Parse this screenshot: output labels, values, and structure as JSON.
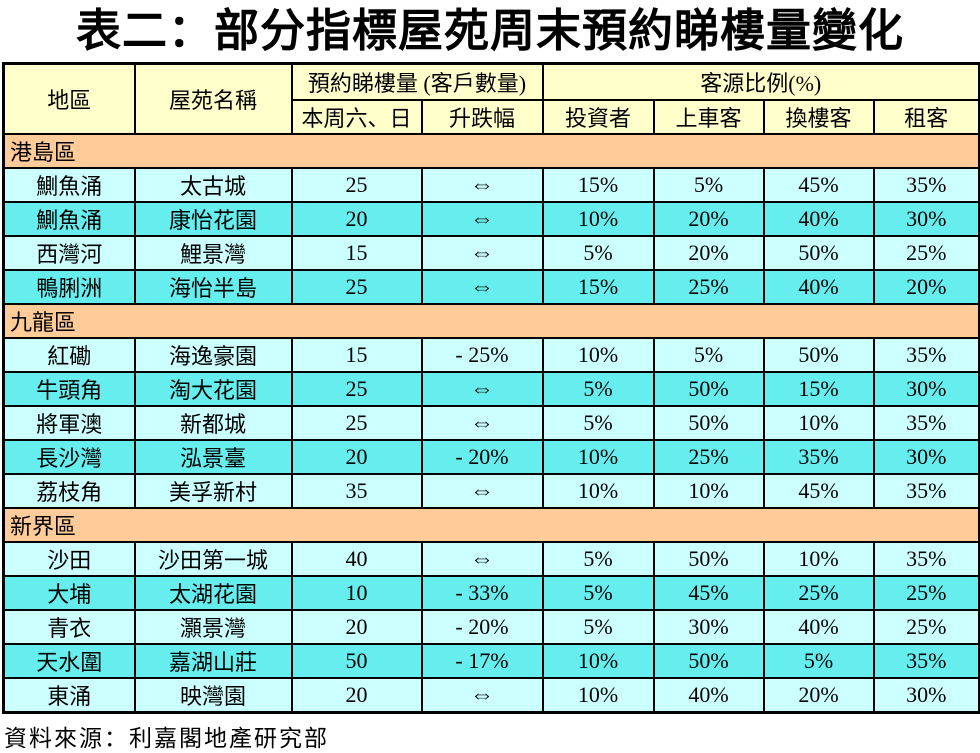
{
  "title": "表二：部分指標屋苑周末預約睇樓量變化",
  "colors": {
    "header_bg": "#FFFFCC",
    "section_bg": "#FFCC99",
    "row_light": "#CCFFFF",
    "row_bright": "#66EEEE",
    "border": "#000000"
  },
  "table": {
    "headers": {
      "district": "地區",
      "estate": "屋苑名稱",
      "bookings_group": "預約睇樓量 (客戶數量)",
      "weekend": "本周六、日",
      "change": "升跌幅",
      "source_group": "客源比例(%)",
      "investor": "投資者",
      "first_time": "上車客",
      "upgrader": "換樓客",
      "tenant": "租客"
    },
    "sections": [
      {
        "name": "港島區",
        "rows": [
          {
            "district": "鰂魚涌",
            "estate": "太古城",
            "weekend": "25",
            "change": "⇔",
            "investor": "15%",
            "first_time": "5%",
            "upgrader": "45%",
            "tenant": "35%"
          },
          {
            "district": "鰂魚涌",
            "estate": "康怡花園",
            "weekend": "20",
            "change": "⇔",
            "investor": "10%",
            "first_time": "20%",
            "upgrader": "40%",
            "tenant": "30%"
          },
          {
            "district": "西灣河",
            "estate": "鯉景灣",
            "weekend": "15",
            "change": "⇔",
            "investor": "5%",
            "first_time": "20%",
            "upgrader": "50%",
            "tenant": "25%"
          },
          {
            "district": "鴨脷洲",
            "estate": "海怡半島",
            "weekend": "25",
            "change": "⇔",
            "investor": "15%",
            "first_time": "25%",
            "upgrader": "40%",
            "tenant": "20%"
          }
        ]
      },
      {
        "name": "九龍區",
        "rows": [
          {
            "district": "紅磡",
            "estate": "海逸豪園",
            "weekend": "15",
            "change": "- 25%",
            "investor": "10%",
            "first_time": "5%",
            "upgrader": "50%",
            "tenant": "35%"
          },
          {
            "district": "牛頭角",
            "estate": "淘大花園",
            "weekend": "25",
            "change": "⇔",
            "investor": "5%",
            "first_time": "50%",
            "upgrader": "15%",
            "tenant": "30%"
          },
          {
            "district": "將軍澳",
            "estate": "新都城",
            "weekend": "25",
            "change": "⇔",
            "investor": "5%",
            "first_time": "50%",
            "upgrader": "10%",
            "tenant": "35%"
          },
          {
            "district": "長沙灣",
            "estate": "泓景臺",
            "weekend": "20",
            "change": "- 20%",
            "investor": "10%",
            "first_time": "25%",
            "upgrader": "35%",
            "tenant": "30%"
          },
          {
            "district": "荔枝角",
            "estate": "美孚新村",
            "weekend": "35",
            "change": "⇔",
            "investor": "10%",
            "first_time": "10%",
            "upgrader": "45%",
            "tenant": "35%"
          }
        ]
      },
      {
        "name": "新界區",
        "rows": [
          {
            "district": "沙田",
            "estate": "沙田第一城",
            "weekend": "40",
            "change": "⇔",
            "investor": "5%",
            "first_time": "50%",
            "upgrader": "10%",
            "tenant": "35%"
          },
          {
            "district": "大埔",
            "estate": "太湖花園",
            "weekend": "10",
            "change": "- 33%",
            "investor": "5%",
            "first_time": "45%",
            "upgrader": "25%",
            "tenant": "25%"
          },
          {
            "district": "青衣",
            "estate": "灝景灣",
            "weekend": "20",
            "change": "- 20%",
            "investor": "5%",
            "first_time": "30%",
            "upgrader": "40%",
            "tenant": "25%"
          },
          {
            "district": "天水圍",
            "estate": "嘉湖山莊",
            "weekend": "50",
            "change": "- 17%",
            "investor": "10%",
            "first_time": "50%",
            "upgrader": "5%",
            "tenant": "35%"
          },
          {
            "district": "東涌",
            "estate": "映灣園",
            "weekend": "20",
            "change": "⇔",
            "investor": "10%",
            "first_time": "40%",
            "upgrader": "20%",
            "tenant": "30%"
          }
        ]
      }
    ]
  },
  "footer": {
    "source": "資料來源：利嘉閣地產研究部"
  }
}
